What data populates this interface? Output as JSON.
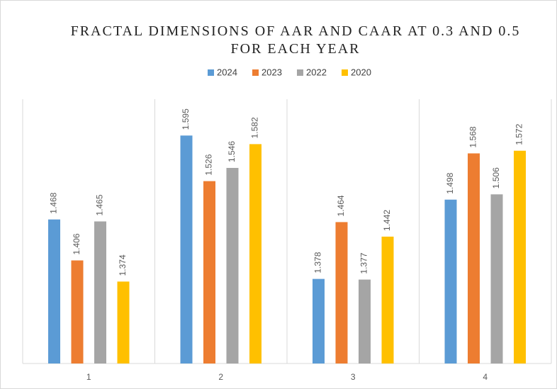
{
  "chart_data": {
    "type": "bar",
    "title": "FRACTAL DIMENSIONS OF AAR AND CAAR AT 0.3 AND 0.5 FOR EACH YEAR",
    "categories": [
      "1",
      "2",
      "3",
      "4"
    ],
    "series": [
      {
        "name": "2024",
        "color": "#5b9bd5",
        "values": [
          1.468,
          1.595,
          1.378,
          1.498
        ]
      },
      {
        "name": "2023",
        "color": "#ed7d31",
        "values": [
          1.406,
          1.526,
          1.464,
          1.568
        ]
      },
      {
        "name": "2022",
        "color": "#a5a5a5",
        "values": [
          1.465,
          1.546,
          1.377,
          1.506
        ]
      },
      {
        "name": "2020",
        "color": "#ffc000",
        "values": [
          1.374,
          1.582,
          1.442,
          1.572
        ]
      }
    ],
    "ylim": [
      1.25,
      1.65
    ],
    "legend": "top"
  }
}
